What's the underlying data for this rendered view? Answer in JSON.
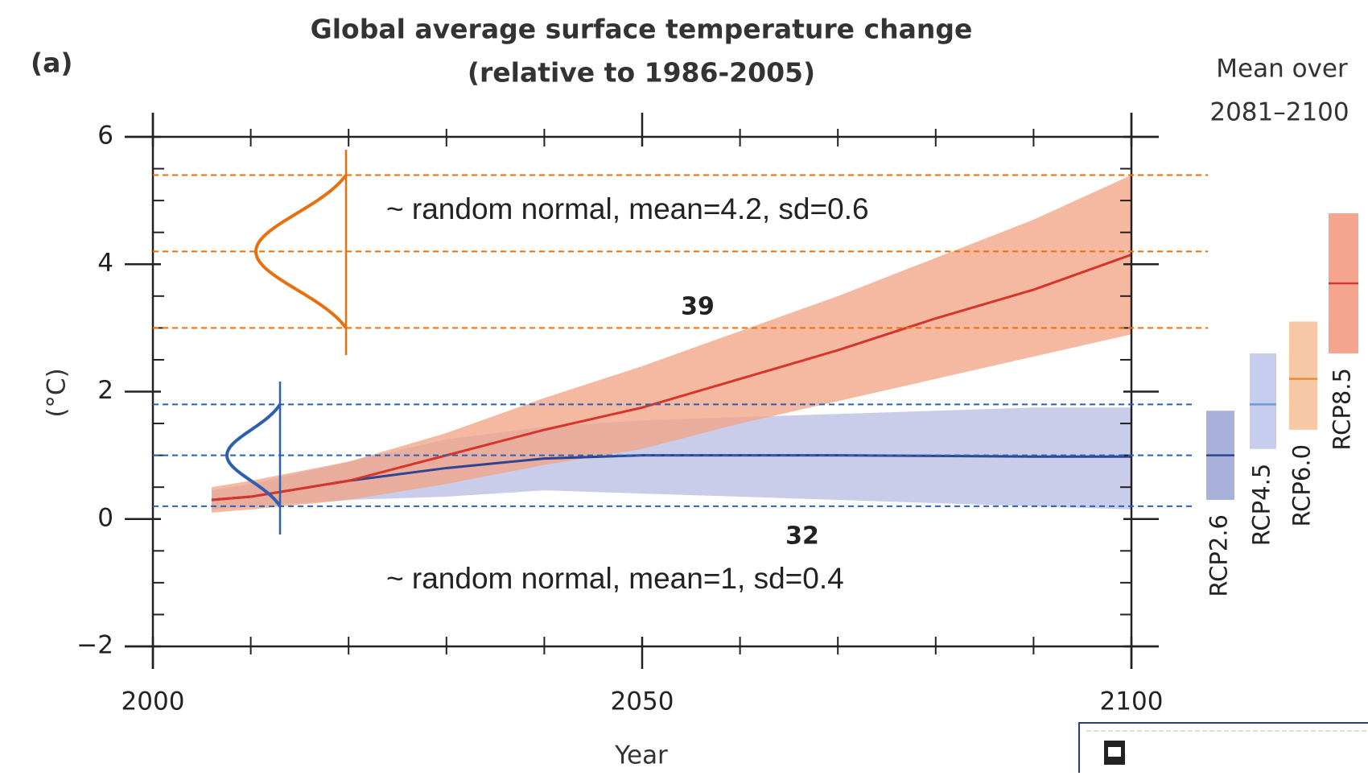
{
  "chart_data": {
    "type": "band-line",
    "panel_label": "(a)",
    "title": [
      "Global average surface temperature change",
      "(relative to 1986-2005)"
    ],
    "x_label": "Year",
    "y_label": "(°C)",
    "xlim": [
      2000,
      2100
    ],
    "xticks": [
      2000,
      2050,
      2100
    ],
    "xminor_ticks": [
      2010,
      2020,
      2030,
      2040,
      2060,
      2070,
      2080,
      2090
    ],
    "ylim": [
      -2,
      6
    ],
    "yticks": [
      {
        "value": -2,
        "label": "−2"
      },
      0,
      2,
      4,
      6
    ],
    "yminor_ticks": [
      -1.5,
      -1,
      -0.5,
      0.5,
      1,
      1.5,
      2.5,
      3,
      3.5,
      4.5,
      5,
      5.5
    ],
    "x": [
      2006,
      2010,
      2020,
      2030,
      2040,
      2050,
      2060,
      2070,
      2080,
      2090,
      2100
    ],
    "series": [
      {
        "color": "#2d4590",
        "band_color": "#b7bce3",
        "values": [
          0.3,
          0.35,
          0.6,
          0.8,
          0.95,
          1.0,
          1.0,
          1.0,
          0.99,
          0.98,
          0.98
        ],
        "lower": [
          0.15,
          0.2,
          0.3,
          0.35,
          0.45,
          0.4,
          0.35,
          0.3,
          0.25,
          0.2,
          0.15
        ],
        "upper": [
          0.45,
          0.55,
          0.9,
          1.25,
          1.45,
          1.55,
          1.6,
          1.65,
          1.7,
          1.75,
          1.75
        ]
      },
      {
        "color": "#d8342a",
        "band_color": "#f2a183",
        "values": [
          0.3,
          0.35,
          0.6,
          1.0,
          1.4,
          1.75,
          2.2,
          2.65,
          3.15,
          3.6,
          4.15
        ],
        "lower": [
          0.1,
          0.15,
          0.3,
          0.55,
          0.85,
          1.1,
          1.5,
          1.85,
          2.2,
          2.55,
          2.9
        ],
        "upper": [
          0.5,
          0.6,
          0.9,
          1.35,
          1.9,
          2.4,
          2.95,
          3.5,
          4.1,
          4.7,
          5.4
        ]
      }
    ],
    "counts": [
      {
        "text": "39",
        "color": "#d0302c"
      },
      {
        "text": "32",
        "color": "#3d4596"
      }
    ],
    "distributions": [
      {
        "label": "~ random normal, mean=4.2, sd=0.6",
        "mean": 4.2,
        "sd": 0.6,
        "color": "#e8700f"
      },
      {
        "label": "~ random normal, mean=1, sd=0.4",
        "mean": 1,
        "sd": 0.4,
        "color": "#2e5fb0"
      }
    ],
    "period_title": [
      "Mean over",
      "2081–2100"
    ],
    "period_means": [
      {
        "name": "RCP2.6",
        "low": 0.3,
        "mean": 1.0,
        "high": 1.7,
        "color": "#a9b0d9",
        "mean_color": "#2d4590"
      },
      {
        "name": "RCP4.5",
        "low": 1.1,
        "mean": 1.8,
        "high": 2.6,
        "color": "#c6cdee",
        "mean_color": "#6f9ad8"
      },
      {
        "name": "RCP6.0",
        "low": 1.4,
        "mean": 2.2,
        "high": 3.1,
        "color": "#f8c9a6",
        "mean_color": "#ef8a3a"
      },
      {
        "name": "RCP8.5",
        "low": 2.6,
        "mean": 3.7,
        "high": 4.8,
        "color": "#f4a48f",
        "mean_color": "#d8342a"
      }
    ]
  }
}
